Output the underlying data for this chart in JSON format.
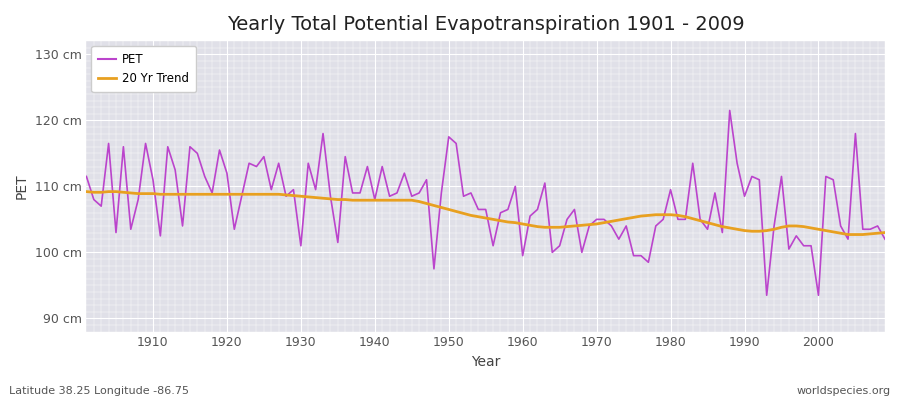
{
  "title": "Yearly Total Potential Evapotranspiration 1901 - 2009",
  "ylabel": "PET",
  "xlabel": "Year",
  "footnote_left": "Latitude 38.25 Longitude -86.75",
  "footnote_right": "worldspecies.org",
  "ylim": [
    88,
    132
  ],
  "yticks": [
    90,
    100,
    110,
    120,
    130
  ],
  "ytick_labels": [
    "90 cm",
    "100 cm",
    "110 cm",
    "120 cm",
    "130 cm"
  ],
  "pet_color": "#BB44CC",
  "trend_color": "#E8A020",
  "bg_color": "#FFFFFF",
  "plot_bg_color": "#E0E0E8",
  "grid_color": "#FFFFFF",
  "xticks": [
    1910,
    1920,
    1930,
    1940,
    1950,
    1960,
    1970,
    1980,
    1990,
    2000
  ],
  "years": [
    1901,
    1902,
    1903,
    1904,
    1905,
    1906,
    1907,
    1908,
    1909,
    1910,
    1911,
    1912,
    1913,
    1914,
    1915,
    1916,
    1917,
    1918,
    1919,
    1920,
    1921,
    1922,
    1923,
    1924,
    1925,
    1926,
    1927,
    1928,
    1929,
    1930,
    1931,
    1932,
    1933,
    1934,
    1935,
    1936,
    1937,
    1938,
    1939,
    1940,
    1941,
    1942,
    1943,
    1944,
    1945,
    1946,
    1947,
    1948,
    1949,
    1950,
    1951,
    1952,
    1953,
    1954,
    1955,
    1956,
    1957,
    1958,
    1959,
    1960,
    1961,
    1962,
    1963,
    1964,
    1965,
    1966,
    1967,
    1968,
    1969,
    1970,
    1971,
    1972,
    1973,
    1974,
    1975,
    1976,
    1977,
    1978,
    1979,
    1980,
    1981,
    1982,
    1983,
    1984,
    1985,
    1986,
    1987,
    1988,
    1989,
    1990,
    1991,
    1992,
    1993,
    1994,
    1995,
    1996,
    1997,
    1998,
    1999,
    2000,
    2001,
    2002,
    2003,
    2004,
    2005,
    2006,
    2007,
    2008,
    2009
  ],
  "pet_values": [
    111.5,
    108.0,
    107.0,
    116.5,
    103.0,
    116.0,
    103.5,
    108.0,
    116.5,
    111.0,
    102.5,
    116.0,
    112.5,
    104.0,
    116.0,
    115.0,
    111.5,
    109.0,
    115.5,
    112.0,
    103.5,
    108.5,
    113.5,
    113.0,
    114.5,
    109.5,
    113.5,
    108.5,
    109.5,
    101.0,
    113.5,
    109.5,
    118.0,
    108.5,
    101.5,
    114.5,
    109.0,
    109.0,
    113.0,
    108.0,
    113.0,
    108.5,
    109.0,
    112.0,
    108.5,
    109.0,
    111.0,
    97.5,
    109.0,
    117.5,
    116.5,
    108.5,
    109.0,
    106.5,
    106.5,
    101.0,
    106.0,
    106.5,
    110.0,
    99.5,
    105.5,
    106.5,
    110.5,
    100.0,
    101.0,
    105.0,
    106.5,
    100.0,
    104.0,
    105.0,
    105.0,
    104.0,
    102.0,
    104.0,
    99.5,
    99.5,
    98.5,
    104.0,
    105.0,
    109.5,
    105.0,
    105.0,
    113.5,
    105.0,
    103.5,
    109.0,
    103.0,
    121.5,
    113.5,
    108.5,
    111.5,
    111.0,
    93.5,
    104.0,
    111.5,
    100.5,
    102.5,
    101.0,
    101.0,
    93.5,
    111.5,
    111.0,
    104.0,
    102.0,
    118.0,
    103.5,
    103.5,
    104.0,
    102.0
  ],
  "trend_values": [
    109.2,
    109.1,
    109.1,
    109.2,
    109.2,
    109.1,
    109.0,
    108.9,
    108.9,
    108.9,
    108.8,
    108.8,
    108.8,
    108.8,
    108.8,
    108.8,
    108.8,
    108.8,
    108.8,
    108.8,
    108.8,
    108.8,
    108.8,
    108.8,
    108.8,
    108.8,
    108.8,
    108.7,
    108.6,
    108.5,
    108.4,
    108.3,
    108.2,
    108.1,
    108.0,
    108.0,
    107.9,
    107.9,
    107.9,
    107.9,
    107.9,
    107.9,
    107.9,
    107.9,
    107.9,
    107.7,
    107.4,
    107.1,
    106.8,
    106.5,
    106.2,
    105.9,
    105.6,
    105.4,
    105.2,
    105.0,
    104.8,
    104.6,
    104.5,
    104.3,
    104.1,
    103.9,
    103.8,
    103.8,
    103.8,
    103.9,
    104.0,
    104.1,
    104.2,
    104.3,
    104.5,
    104.7,
    104.9,
    105.1,
    105.3,
    105.5,
    105.6,
    105.7,
    105.7,
    105.7,
    105.6,
    105.4,
    105.1,
    104.8,
    104.5,
    104.2,
    103.9,
    103.7,
    103.5,
    103.3,
    103.2,
    103.2,
    103.3,
    103.5,
    103.8,
    104.0,
    104.0,
    103.9,
    103.7,
    103.5,
    103.3,
    103.1,
    102.9,
    102.7,
    102.7,
    102.7,
    102.8,
    102.9,
    103.0
  ],
  "legend_pet_label": "PET",
  "legend_trend_label": "20 Yr Trend",
  "title_fontsize": 14,
  "axis_label_fontsize": 10,
  "tick_fontsize": 9,
  "footnote_fontsize": 8
}
